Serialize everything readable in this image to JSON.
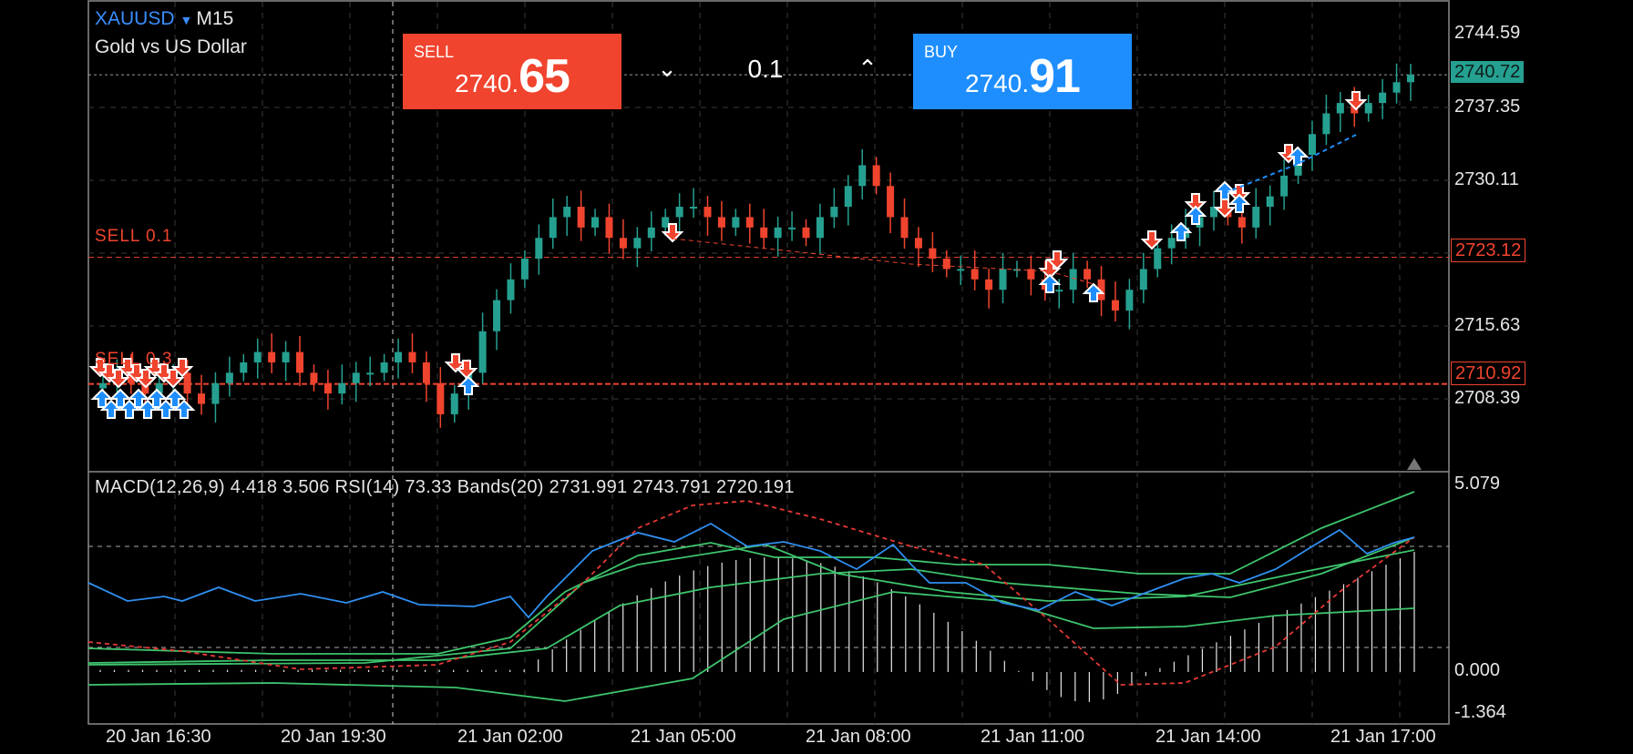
{
  "symbol": {
    "name": "XAUUSD",
    "timeframe": "M15",
    "description": "Gold vs US Dollar"
  },
  "trade": {
    "sell_label": "SELL",
    "sell_price_main": "2740.",
    "sell_price_big": "65",
    "buy_label": "BUY",
    "buy_price_main": "2740.",
    "buy_price_big": "91",
    "quantity": "0.1"
  },
  "orders": [
    {
      "label": "SELL 0.1",
      "price": "2723.12"
    },
    {
      "label": "SELL 0.3",
      "price": "2710.92"
    }
  ],
  "current_price": "2740.72",
  "price_axis": [
    "2744.59",
    "2737.35",
    "2730.11",
    "2715.63",
    "2708.39"
  ],
  "indicator_text": "MACD(12,26,9) 4.418 3.506 RSI(14) 73.33 Bands(20) 2731.991 2743.791 2720.191",
  "indicator_axis": [
    "5.079",
    "0.000",
    "-1.364"
  ],
  "time_axis": [
    "20 Jan 16:30",
    "20 Jan 19:30",
    "21 Jan 02:00",
    "21 Jan 05:00",
    "21 Jan 08:00",
    "21 Jan 11:00",
    "21 Jan 14:00",
    "21 Jan 17:00"
  ],
  "colors": {
    "bull": "#25a090",
    "bear": "#f0442e",
    "rsi": "#2f8ff0",
    "bands": "#3ec46d",
    "signal": "#e53935",
    "grid": "#3a3a3a"
  },
  "chart_data": [
    {
      "type": "candlestick",
      "title": "XAUUSD M15",
      "ylim": [
        2703,
        2747
      ],
      "close_series": [
        2711,
        2712,
        2711,
        2710,
        2711,
        2712,
        2710,
        2709,
        2711,
        2712,
        2713,
        2714,
        2713,
        2714,
        2712,
        2711,
        2710,
        2711,
        2712,
        2712,
        2713,
        2714,
        2713,
        2711,
        2708,
        2710,
        2712,
        2716,
        2719,
        2721,
        2723,
        2725,
        2727,
        2728,
        2726,
        2727,
        2725,
        2724,
        2725,
        2726,
        2727,
        2728,
        2728,
        2727,
        2726,
        2727,
        2726,
        2725,
        2726,
        2726,
        2725,
        2727,
        2728,
        2730,
        2732,
        2730,
        2727,
        2725,
        2724,
        2723,
        2722,
        2722,
        2721,
        2720,
        2722,
        2722,
        2721,
        2720,
        2720,
        2722,
        2721,
        2719,
        2718,
        2720,
        2722,
        2724,
        2725,
        2726,
        2727,
        2728,
        2727,
        2726,
        2728,
        2729,
        2731,
        2733,
        2735,
        2737,
        2738,
        2737,
        2738,
        2739,
        2740,
        2740.72
      ]
    },
    {
      "type": "line",
      "title": "MACD(12,26,9) / RSI(14) / Bands(20)",
      "ylim": [
        -1.364,
        5.079
      ],
      "values": {
        "macd": 4.418,
        "signal": 3.506,
        "rsi": 73.33,
        "band_mid": 2731.991,
        "band_upper": 2743.791,
        "band_lower": 2720.191
      }
    }
  ]
}
